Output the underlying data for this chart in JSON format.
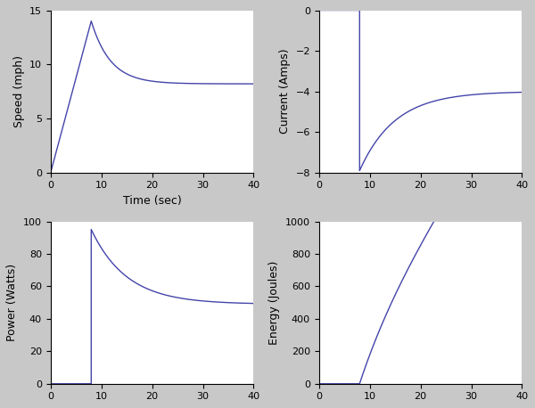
{
  "subplots": [
    {
      "ylabel": "Speed (mph)",
      "xlabel": "Time (sec)",
      "xlim": [
        0,
        40
      ],
      "ylim": [
        0,
        15
      ],
      "yticks": [
        0,
        5,
        10,
        15
      ],
      "xticks": [
        0,
        10,
        20,
        30,
        40
      ],
      "t_switch": 8.0,
      "speed_peak": 14.0,
      "speed_steady": 8.2,
      "decay_tau": 3.8
    },
    {
      "ylabel": "Current (Amps)",
      "xlim": [
        0,
        40
      ],
      "ylim": [
        -8,
        0
      ],
      "yticks": [
        -8,
        -6,
        -4,
        -2,
        0
      ],
      "xticks": [
        0,
        10,
        20,
        30,
        40
      ],
      "t_switch": 8.0,
      "current_min": -7.9,
      "current_steady": -4.0,
      "decay_tau": 7.0
    },
    {
      "ylabel": "Power (Watts)",
      "xlim": [
        0,
        40
      ],
      "ylim": [
        0,
        100
      ],
      "yticks": [
        0,
        20,
        40,
        60,
        80,
        100
      ],
      "xticks": [
        0,
        10,
        20,
        30,
        40
      ],
      "t_switch": 8.0,
      "power_peak": 95.0,
      "power_steady": 49.0,
      "decay_tau": 7.0
    },
    {
      "ylabel": "Energy (Joules)",
      "xlim": [
        0,
        40
      ],
      "ylim": [
        0,
        1000
      ],
      "yticks": [
        0,
        200,
        400,
        600,
        800,
        1000
      ],
      "xticks": [
        0,
        10,
        20,
        30,
        40
      ],
      "t_switch": 8.0,
      "power_peak": 95.0,
      "power_steady": 49.0,
      "decay_tau": 7.0
    }
  ],
  "line_color": "#4444aa",
  "line_width": 1.0,
  "figure_facecolor": "#c8c8c8",
  "axes_facecolor": "#ffffff"
}
